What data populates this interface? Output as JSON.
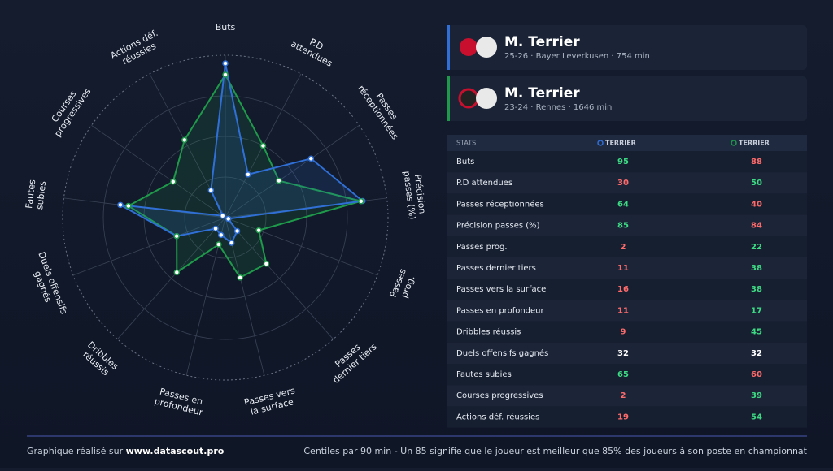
{
  "chart_data": {
    "type": "radar",
    "categories": [
      "Buts",
      "P.D attendues",
      "Passes réceptionnées",
      "Précision passes (%)",
      "Passes prog.",
      "Passes dernier tiers",
      "Passes vers la surface",
      "Passes en profondeur",
      "Dribbles réussis",
      "Duels offensifs gagnés",
      "Fautes subies",
      "Courses progressives",
      "Actions déf. réussies"
    ],
    "series": [
      {
        "name": "TERRIER",
        "color": "#2f6fd6",
        "values": [
          95,
          30,
          64,
          85,
          2,
          11,
          16,
          11,
          9,
          32,
          65,
          2,
          19
        ]
      },
      {
        "name": "TERRIER",
        "color": "#1f9a4a",
        "values": [
          88,
          50,
          40,
          84,
          22,
          38,
          38,
          17,
          45,
          32,
          60,
          39,
          54
        ]
      }
    ],
    "ylim": [
      0,
      100
    ]
  },
  "players": [
    {
      "name": "M. Terrier",
      "season": "25-26",
      "team": "Bayer Leverkusen",
      "minutes": "754 min"
    },
    {
      "name": "M. Terrier",
      "season": "23-24",
      "team": "Rennes",
      "minutes": "1646 min"
    }
  ],
  "table": {
    "header": "STATS"
  },
  "footer": {
    "credit": "Graphique réalisé sur",
    "site": "www.datascout.pro",
    "note": "Centiles par 90 min - Un 85 signifie que le joueur est meilleur que 85% des joueurs à son poste en championnat"
  }
}
